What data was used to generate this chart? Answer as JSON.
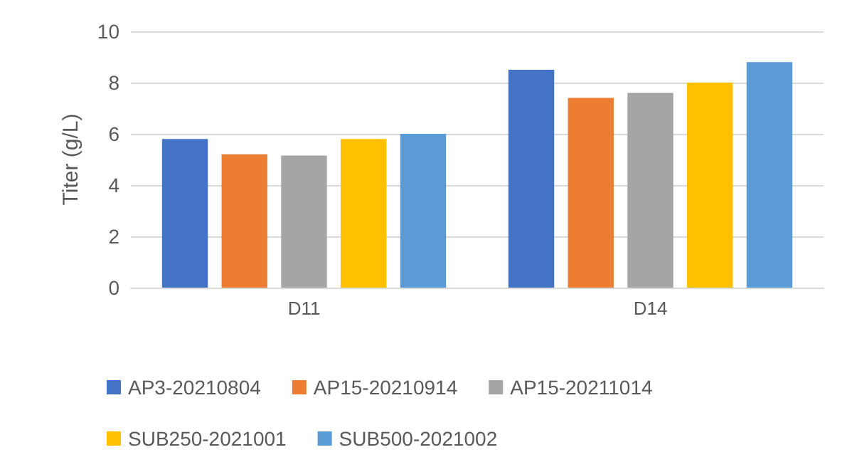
{
  "chart_data": {
    "type": "bar",
    "ylabel": "Titer (g/L)",
    "categories": [
      "D11",
      "D14"
    ],
    "series": [
      {
        "name": "AP3-20210804",
        "color": "#4472c4",
        "values": [
          5.8,
          8.5
        ]
      },
      {
        "name": "AP15-20210914",
        "color": "#ed7d31",
        "values": [
          5.2,
          7.4
        ]
      },
      {
        "name": "AP15-20211014",
        "color": "#a5a5a5",
        "values": [
          5.15,
          7.6
        ]
      },
      {
        "name": "SUB250-2021001",
        "color": "#ffc000",
        "values": [
          5.8,
          8.0
        ]
      },
      {
        "name": "SUB500-2021002",
        "color": "#5b9bd5",
        "values": [
          6.0,
          8.8
        ]
      }
    ],
    "ylim": [
      0,
      10
    ],
    "yticks": [
      0,
      2,
      4,
      6,
      8,
      10
    ],
    "grid": "y",
    "legend": "bottom"
  }
}
